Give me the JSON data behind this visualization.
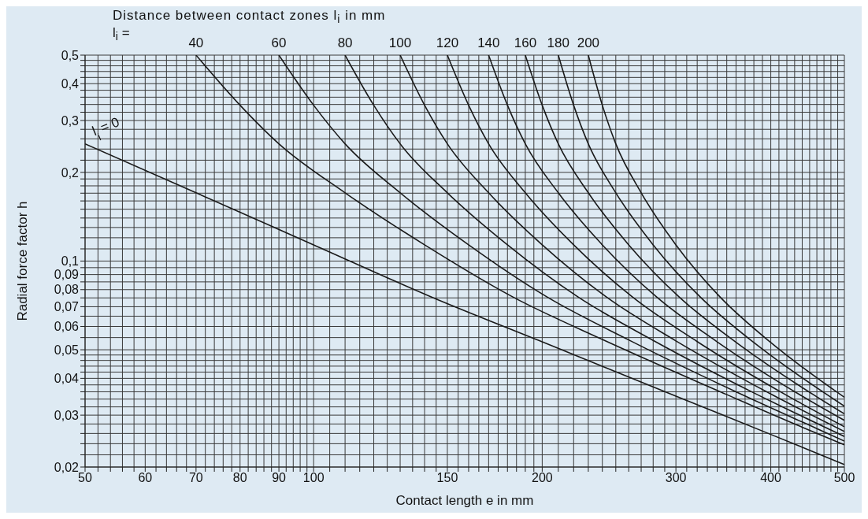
{
  "chart_data": {
    "type": "line",
    "title": "Distance between contact zones l$_{i}$ in mm",
    "xlabel": "Contact length e in mm",
    "ylabel": "Radial force factor h",
    "annotations": [
      "l$_{i}$ ="
    ],
    "log": "xy",
    "grid": true,
    "xlim": [
      50,
      500
    ],
    "ylim": [
      0.02,
      0.5
    ],
    "xticks": [
      50,
      {
        "value": 52,
        "label": null
      },
      {
        "value": 54,
        "label": null
      },
      {
        "value": 56,
        "label": null
      },
      {
        "value": 58,
        "label": null
      },
      60,
      {
        "value": 62,
        "label": null
      },
      {
        "value": 64,
        "label": null
      },
      {
        "value": 66,
        "label": null
      },
      {
        "value": 68,
        "label": null
      },
      70,
      {
        "value": 72,
        "label": null
      },
      {
        "value": 74,
        "label": null
      },
      {
        "value": 76,
        "label": null
      },
      {
        "value": 78,
        "label": null
      },
      80,
      {
        "value": 82,
        "label": null
      },
      {
        "value": 84,
        "label": null
      },
      {
        "value": 86,
        "label": null
      },
      {
        "value": 88,
        "label": null
      },
      90,
      {
        "value": 92,
        "label": null
      },
      {
        "value": 94,
        "label": null
      },
      {
        "value": 96,
        "label": null
      },
      {
        "value": 98,
        "label": null
      },
      100,
      {
        "value": 105,
        "label": null
      },
      {
        "value": 110,
        "label": null
      },
      {
        "value": 115,
        "label": null
      },
      {
        "value": 120,
        "label": null
      },
      {
        "value": 125,
        "label": null
      },
      {
        "value": 130,
        "label": null
      },
      {
        "value": 135,
        "label": null
      },
      {
        "value": 140,
        "label": null
      },
      {
        "value": 145,
        "label": null
      },
      150,
      {
        "value": 155,
        "label": null
      },
      {
        "value": 160,
        "label": null
      },
      {
        "value": 165,
        "label": null
      },
      {
        "value": 170,
        "label": null
      },
      {
        "value": 175,
        "label": null
      },
      {
        "value": 180,
        "label": null
      },
      {
        "value": 185,
        "label": null
      },
      {
        "value": 190,
        "label": null
      },
      {
        "value": 195,
        "label": null
      },
      200,
      {
        "value": 210,
        "label": null
      },
      {
        "value": 220,
        "label": null
      },
      {
        "value": 230,
        "label": null
      },
      {
        "value": 240,
        "label": null
      },
      {
        "value": 250,
        "label": null
      },
      {
        "value": 260,
        "label": null
      },
      {
        "value": 270,
        "label": null
      },
      {
        "value": 280,
        "label": null
      },
      {
        "value": 290,
        "label": null
      },
      300,
      {
        "value": 310,
        "label": null
      },
      {
        "value": 320,
        "label": null
      },
      {
        "value": 330,
        "label": null
      },
      {
        "value": 340,
        "label": null
      },
      {
        "value": 350,
        "label": null
      },
      {
        "value": 360,
        "label": null
      },
      {
        "value": 370,
        "label": null
      },
      {
        "value": 380,
        "label": null
      },
      {
        "value": 390,
        "label": null
      },
      400,
      {
        "value": 410,
        "label": null
      },
      {
        "value": 420,
        "label": null
      },
      {
        "value": 430,
        "label": null
      },
      {
        "value": 440,
        "label": null
      },
      {
        "value": 450,
        "label": null
      },
      {
        "value": 460,
        "label": null
      },
      {
        "value": 470,
        "label": null
      },
      {
        "value": 480,
        "label": null
      },
      {
        "value": 490,
        "label": null
      },
      500
    ],
    "yticks": [
      {
        "value": 0.02,
        "label": "0,02"
      },
      {
        "value": 0.022,
        "label": null
      },
      {
        "value": 0.024,
        "label": null
      },
      {
        "value": 0.026,
        "label": null
      },
      {
        "value": 0.028,
        "label": null
      },
      {
        "value": 0.03,
        "label": "0,03"
      },
      {
        "value": 0.032,
        "label": null
      },
      {
        "value": 0.034,
        "label": null
      },
      {
        "value": 0.036,
        "label": null
      },
      {
        "value": 0.038,
        "label": null
      },
      {
        "value": 0.04,
        "label": "0,04"
      },
      {
        "value": 0.042,
        "label": null
      },
      {
        "value": 0.044,
        "label": null
      },
      {
        "value": 0.046,
        "label": null
      },
      {
        "value": 0.048,
        "label": null
      },
      {
        "value": 0.05,
        "label": "0,05"
      },
      {
        "value": 0.055,
        "label": null
      },
      {
        "value": 0.06,
        "label": "0,06"
      },
      {
        "value": 0.065,
        "label": null
      },
      {
        "value": 0.07,
        "label": "0,07"
      },
      {
        "value": 0.075,
        "label": null
      },
      {
        "value": 0.08,
        "label": "0,08"
      },
      {
        "value": 0.085,
        "label": null
      },
      {
        "value": 0.09,
        "label": "0,09"
      },
      {
        "value": 0.095,
        "label": null
      },
      {
        "value": 0.1,
        "label": "0,1"
      },
      {
        "value": 0.11,
        "label": null
      },
      {
        "value": 0.12,
        "label": null
      },
      {
        "value": 0.13,
        "label": null
      },
      {
        "value": 0.14,
        "label": null
      },
      {
        "value": 0.15,
        "label": null
      },
      {
        "value": 0.16,
        "label": null
      },
      {
        "value": 0.17,
        "label": null
      },
      {
        "value": 0.18,
        "label": null
      },
      {
        "value": 0.19,
        "label": null
      },
      {
        "value": 0.2,
        "label": "0,2"
      },
      {
        "value": 0.22,
        "label": null
      },
      {
        "value": 0.24,
        "label": null
      },
      {
        "value": 0.26,
        "label": null
      },
      {
        "value": 0.28,
        "label": null
      },
      {
        "value": 0.3,
        "label": "0,3"
      },
      {
        "value": 0.32,
        "label": null
      },
      {
        "value": 0.34,
        "label": null
      },
      {
        "value": 0.36,
        "label": null
      },
      {
        "value": 0.38,
        "label": null
      },
      {
        "value": 0.4,
        "label": "0,4"
      },
      {
        "value": 0.42,
        "label": null
      },
      {
        "value": 0.44,
        "label": null
      },
      {
        "value": 0.46,
        "label": null
      },
      {
        "value": 0.48,
        "label": null
      },
      {
        "value": 0.5,
        "label": "0,5"
      }
    ],
    "series": [
      {
        "name": "l$_{i}$ = 0",
        "color": "#1a1a1a",
        "x": [
          50,
          70,
          100,
          143,
          200,
          300,
          400,
          500
        ],
        "values": [
          0.25,
          0.1705,
          0.1135,
          0.0755,
          0.0532,
          0.0348,
          0.0258,
          0.0204
        ]
      },
      {
        "name": "40",
        "color": "#1a1a1a",
        "x": [
          70,
          80,
          90,
          110,
          140,
          183,
          240,
          340,
          440,
          500
        ],
        "values": [
          0.5,
          0.338,
          0.25,
          0.1705,
          0.1135,
          0.0755,
          0.0542,
          0.0364,
          0.0273,
          0.0238
        ]
      },
      {
        "name": "60",
        "color": "#1a1a1a",
        "x": [
          90,
          100,
          110,
          130,
          160,
          203,
          260,
          360,
          460,
          500
        ],
        "values": [
          0.5,
          0.338,
          0.25,
          0.1705,
          0.1135,
          0.0755,
          0.054,
          0.036,
          0.027,
          0.0245
        ]
      },
      {
        "name": "80",
        "color": "#1a1a1a",
        "x": [
          110,
          120,
          130,
          150,
          180,
          223,
          280,
          380,
          480,
          500
        ],
        "values": [
          0.5,
          0.338,
          0.25,
          0.1705,
          0.1135,
          0.0755,
          0.0538,
          0.0357,
          0.0267,
          0.0254
        ]
      },
      {
        "name": "100",
        "color": "#1a1a1a",
        "x": [
          130,
          140,
          150,
          170,
          200,
          243,
          300,
          400,
          500
        ],
        "values": [
          0.5,
          0.338,
          0.25,
          0.1705,
          0.1135,
          0.0755,
          0.0536,
          0.0354,
          0.0264
        ]
      },
      {
        "name": "120",
        "color": "#1a1a1a",
        "x": [
          150,
          160,
          170,
          190,
          220,
          263,
          320,
          420,
          500
        ],
        "values": [
          0.5,
          0.338,
          0.25,
          0.1705,
          0.1135,
          0.0755,
          0.0533,
          0.035,
          0.0274
        ]
      },
      {
        "name": "140",
        "color": "#1a1a1a",
        "x": [
          170,
          180,
          190,
          210,
          240,
          283,
          340,
          440,
          500
        ],
        "values": [
          0.5,
          0.338,
          0.25,
          0.1705,
          0.1135,
          0.0755,
          0.0532,
          0.0348,
          0.0288
        ]
      },
      {
        "name": "160",
        "color": "#1a1a1a",
        "x": [
          190,
          200,
          210,
          230,
          260,
          303,
          360,
          460,
          500
        ],
        "values": [
          0.5,
          0.338,
          0.25,
          0.1705,
          0.1135,
          0.0755,
          0.053,
          0.0346,
          0.0303
        ]
      },
      {
        "name": "180",
        "color": "#1a1a1a",
        "x": [
          210,
          220,
          230,
          250,
          280,
          323,
          380,
          480,
          500
        ],
        "values": [
          0.5,
          0.338,
          0.25,
          0.1705,
          0.1135,
          0.0755,
          0.0529,
          0.0345,
          0.0322
        ]
      },
      {
        "name": "200",
        "color": "#1a1a1a",
        "x": [
          230,
          240,
          250,
          270,
          300,
          343,
          400,
          500
        ],
        "values": [
          0.5,
          0.338,
          0.25,
          0.1705,
          0.1135,
          0.0755,
          0.0529,
          0.0345
        ]
      }
    ]
  }
}
